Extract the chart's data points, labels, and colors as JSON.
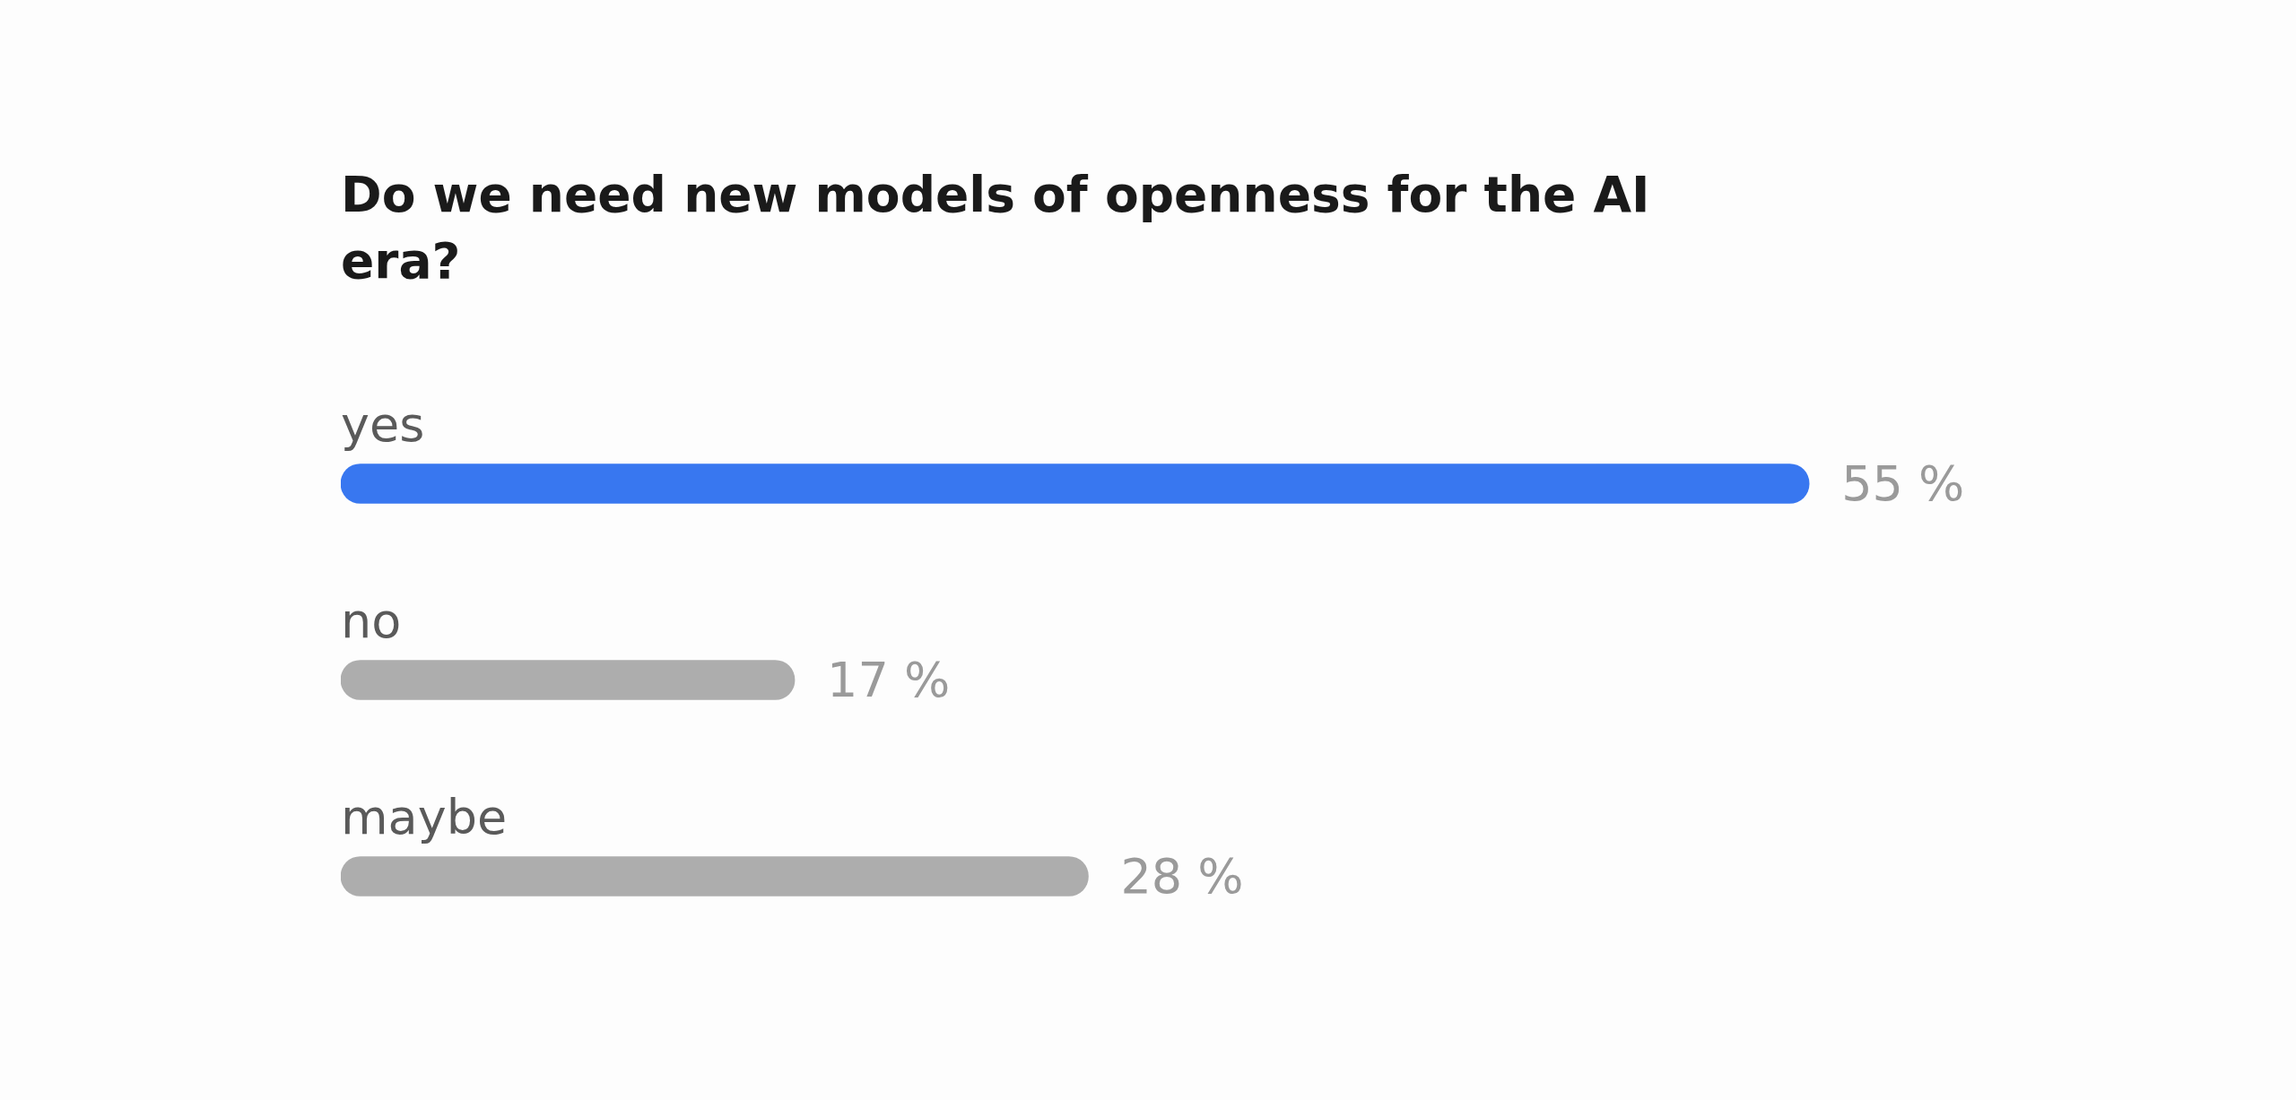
{
  "chart_data": {
    "type": "bar",
    "orientation": "horizontal",
    "title": "Do we need new models of openness for the AI era?",
    "categories": [
      "yes",
      "no",
      "maybe"
    ],
    "values": [
      55,
      17,
      28
    ],
    "colors": [
      "#3877f0",
      "#adadad",
      "#adadad"
    ],
    "value_labels": [
      "55 %",
      "17 %",
      "28 %"
    ],
    "legend": false
  }
}
